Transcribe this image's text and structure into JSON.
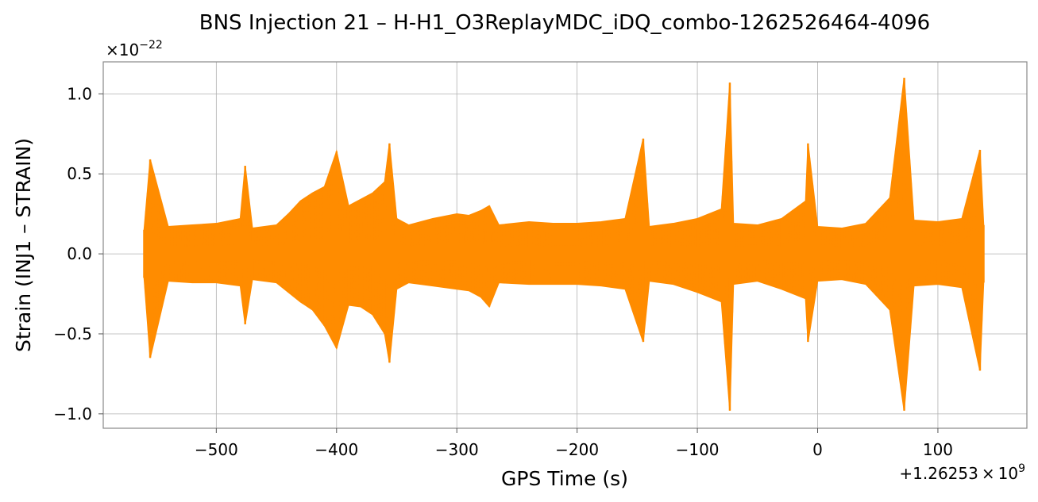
{
  "chart_data": {
    "type": "line",
    "title": "BNS Injection 21 – H-H1_O3ReplayMDC_iDQ_combo-1262526464-4096",
    "xlabel": "GPS Time (s)",
    "ylabel": "Strain (INJ1 – STRAIN)",
    "x_offset_label_base": "+1.26253",
    "x_offset_label_times": "×",
    "x_offset_label_mantissa": "10",
    "x_offset_label_exp": "9",
    "y_scale_label_prefix": "×",
    "y_scale_label_mantissa": "10",
    "y_scale_label_exp": "−22",
    "xlim": [
      -594,
      174
    ],
    "ylim": [
      -1.09,
      1.2
    ],
    "x_ticks": [
      -500,
      -400,
      -300,
      -200,
      -100,
      0,
      100
    ],
    "x_tick_labels": [
      "−500",
      "−400",
      "−300",
      "−200",
      "−100",
      "0",
      "100"
    ],
    "y_ticks": [
      -1.0,
      -0.5,
      0.0,
      0.5,
      1.0
    ],
    "y_tick_labels": [
      "−1.0",
      "−0.5",
      "0.0",
      "0.5",
      "1.0"
    ],
    "grid": true,
    "line_color": "#ff8c00",
    "series": [
      {
        "x": [
          -560,
          -555,
          -540,
          -520,
          -500,
          -480,
          -476,
          -470,
          -450,
          -440,
          -430,
          -420,
          -410,
          -400,
          -390,
          -380,
          -370,
          -360,
          -356,
          -350,
          -340,
          -320,
          -300,
          -290,
          -280,
          -273,
          -265,
          -240,
          -220,
          -200,
          -180,
          -160,
          -145,
          -140,
          -120,
          -100,
          -80,
          -73,
          -70,
          -50,
          -30,
          -10,
          -8,
          0,
          20,
          40,
          60,
          72,
          80,
          100,
          120,
          135,
          138
        ],
        "upper": [
          0.15,
          0.59,
          0.17,
          0.18,
          0.19,
          0.22,
          0.55,
          0.16,
          0.18,
          0.25,
          0.33,
          0.38,
          0.42,
          0.64,
          0.3,
          0.34,
          0.38,
          0.45,
          0.69,
          0.22,
          0.18,
          0.22,
          0.25,
          0.24,
          0.27,
          0.3,
          0.18,
          0.2,
          0.19,
          0.19,
          0.2,
          0.22,
          0.72,
          0.17,
          0.19,
          0.22,
          0.28,
          1.07,
          0.19,
          0.18,
          0.22,
          0.33,
          0.69,
          0.17,
          0.16,
          0.19,
          0.35,
          1.1,
          0.21,
          0.2,
          0.22,
          0.65,
          0.18
        ],
        "lower": [
          -0.15,
          -0.65,
          -0.17,
          -0.18,
          -0.18,
          -0.2,
          -0.44,
          -0.16,
          -0.18,
          -0.24,
          -0.3,
          -0.35,
          -0.45,
          -0.59,
          -0.32,
          -0.33,
          -0.38,
          -0.5,
          -0.68,
          -0.22,
          -0.18,
          -0.2,
          -0.22,
          -0.23,
          -0.27,
          -0.33,
          -0.18,
          -0.19,
          -0.19,
          -0.19,
          -0.2,
          -0.22,
          -0.55,
          -0.17,
          -0.19,
          -0.24,
          -0.3,
          -0.98,
          -0.19,
          -0.17,
          -0.22,
          -0.28,
          -0.55,
          -0.17,
          -0.16,
          -0.19,
          -0.35,
          -0.98,
          -0.2,
          -0.19,
          -0.21,
          -0.73,
          -0.18
        ]
      }
    ]
  }
}
